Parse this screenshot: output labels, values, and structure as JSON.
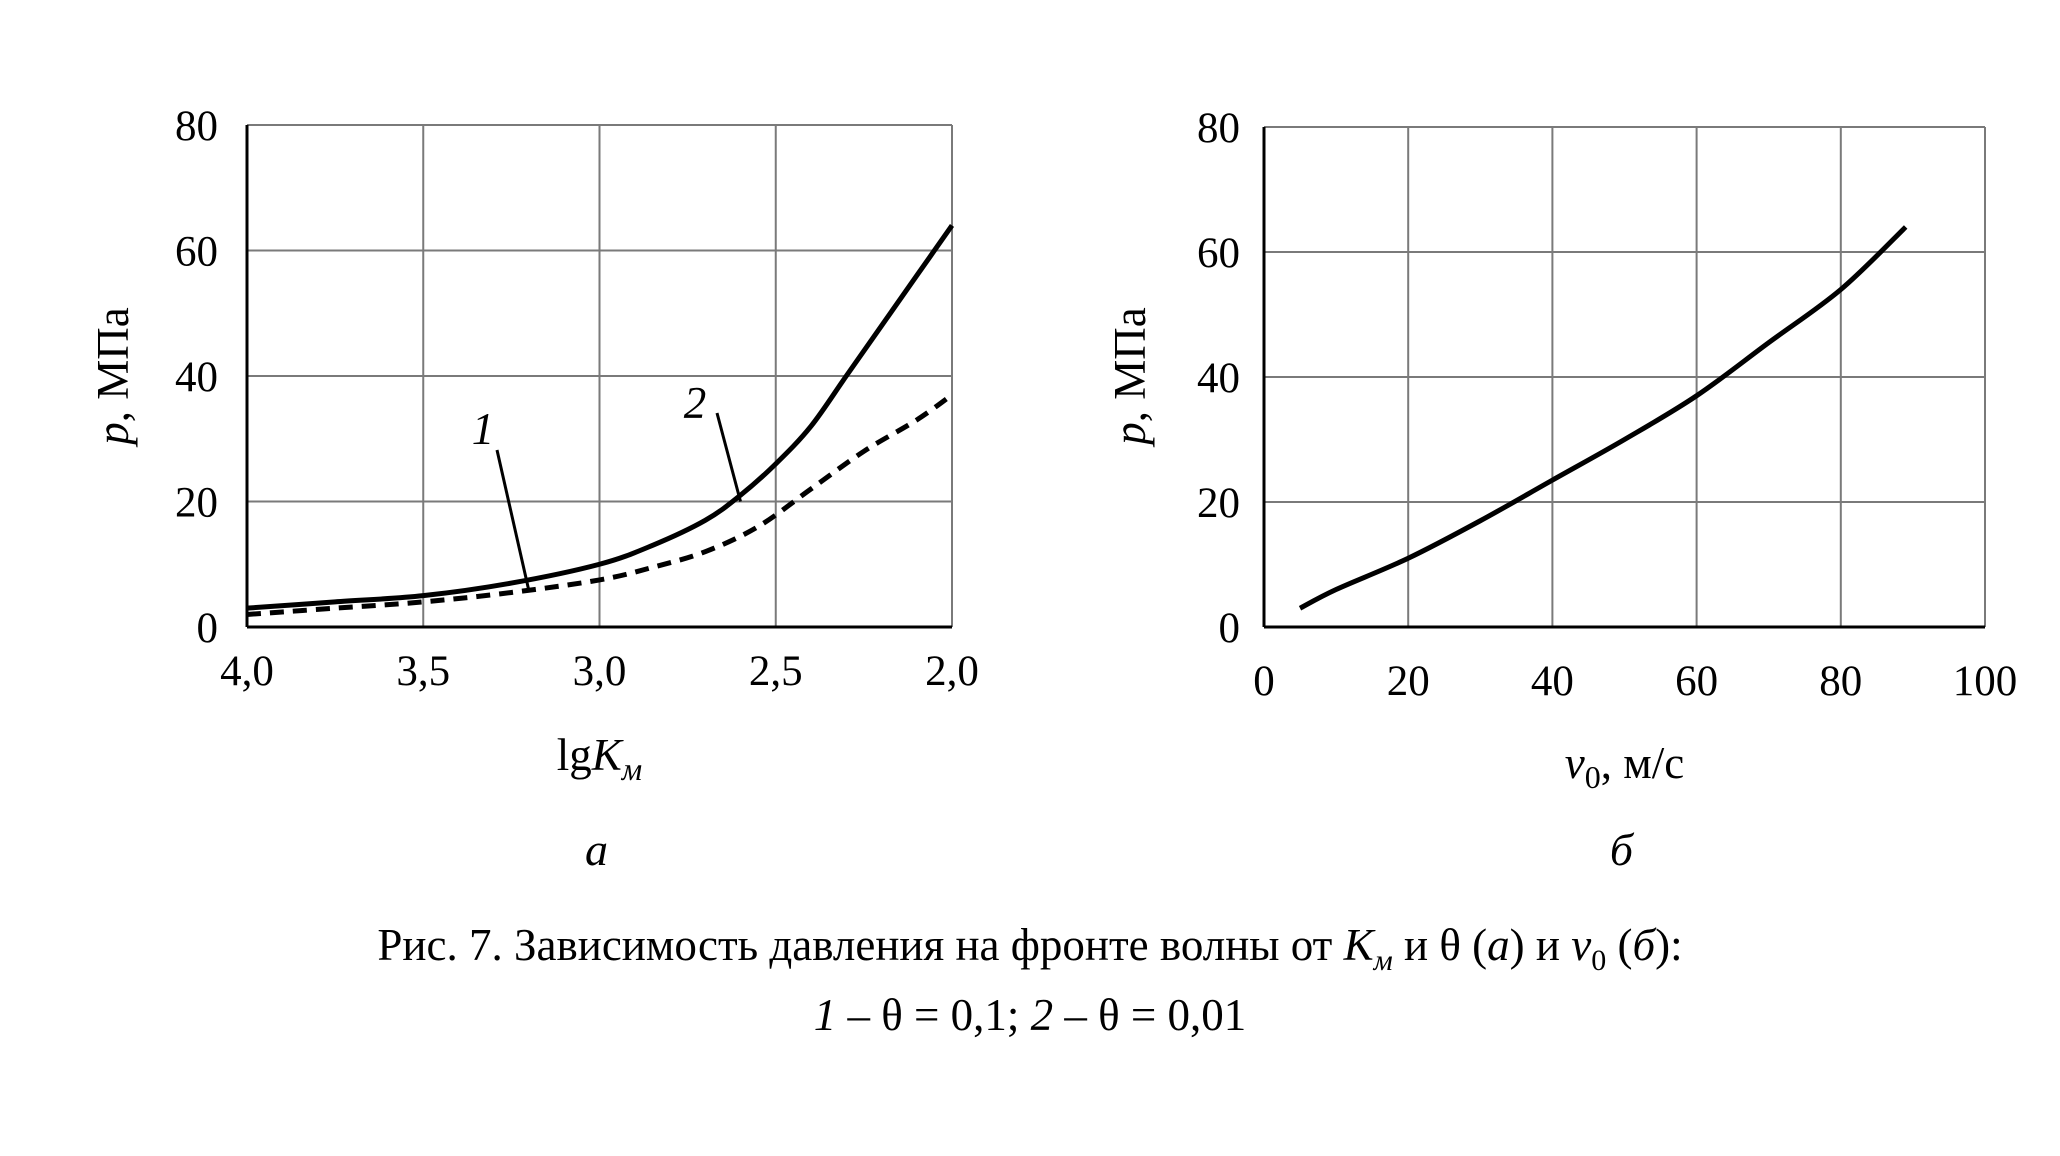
{
  "chart_data": [
    {
      "type": "line",
      "panel_label": "а",
      "ylabel": "p, МПа",
      "xlabel": "lgKм",
      "xlim": [
        4.0,
        2.0
      ],
      "ylim": [
        0,
        80
      ],
      "x_reversed": true,
      "xticks": [
        "4,0",
        "3,5",
        "3,0",
        "2,5",
        "2,0"
      ],
      "xtick_values": [
        4.0,
        3.5,
        3.0,
        2.5,
        2.0
      ],
      "yticks": [
        "0",
        "20",
        "40",
        "60",
        "80"
      ],
      "ytick_values": [
        0,
        20,
        40,
        60,
        80
      ],
      "grid": true,
      "series": [
        {
          "name": "1",
          "style": "dashed",
          "x": [
            4.0,
            3.75,
            3.5,
            3.25,
            3.0,
            2.85,
            2.7,
            2.55,
            2.4,
            2.25,
            2.1,
            2.0
          ],
          "y": [
            2,
            3,
            4,
            5.5,
            7.5,
            9.5,
            12,
            16,
            22,
            28,
            33,
            37
          ]
        },
        {
          "name": "2",
          "style": "solid",
          "x": [
            4.0,
            3.75,
            3.5,
            3.25,
            3.0,
            2.85,
            2.7,
            2.6,
            2.5,
            2.4,
            2.3,
            2.2,
            2.1,
            2.0
          ],
          "y": [
            3,
            4,
            5,
            7,
            10,
            13,
            17,
            21,
            26,
            32,
            40,
            48,
            56,
            64
          ]
        }
      ],
      "annotations": [
        {
          "text": "1",
          "series": "1"
        },
        {
          "text": "2",
          "series": "2"
        }
      ]
    },
    {
      "type": "line",
      "panel_label": "б",
      "ylabel": "p, МПа",
      "xlabel": "v0, м/с",
      "xlim": [
        0,
        100
      ],
      "ylim": [
        0,
        80
      ],
      "xticks": [
        "0",
        "20",
        "40",
        "60",
        "80",
        "100"
      ],
      "xtick_values": [
        0,
        20,
        40,
        60,
        80,
        100
      ],
      "yticks": [
        "0",
        "20",
        "40",
        "60",
        "80"
      ],
      "ytick_values": [
        0,
        20,
        40,
        60,
        80
      ],
      "grid": true,
      "series": [
        {
          "name": "",
          "style": "solid",
          "x": [
            5,
            10,
            20,
            30,
            40,
            50,
            60,
            70,
            80,
            89
          ],
          "y": [
            3,
            6,
            11,
            17,
            23.5,
            30,
            37,
            45.5,
            54,
            64
          ]
        }
      ]
    }
  ],
  "caption": {
    "line1_prefix": "Рис. 7. Зависимость давления на фронте волны от ",
    "k_symbol": "K",
    "k_sub": "м",
    "mid1": " и θ (",
    "a": "а",
    "mid2": ") и ",
    "v_symbol": "v",
    "v_sub": "0",
    "mid3": " (",
    "b": "б",
    "end": "):",
    "l2_n1": "1",
    "l2_t1": " – θ = 0,1; ",
    "l2_n2": "2",
    "l2_t2": " – θ = 0,01"
  }
}
